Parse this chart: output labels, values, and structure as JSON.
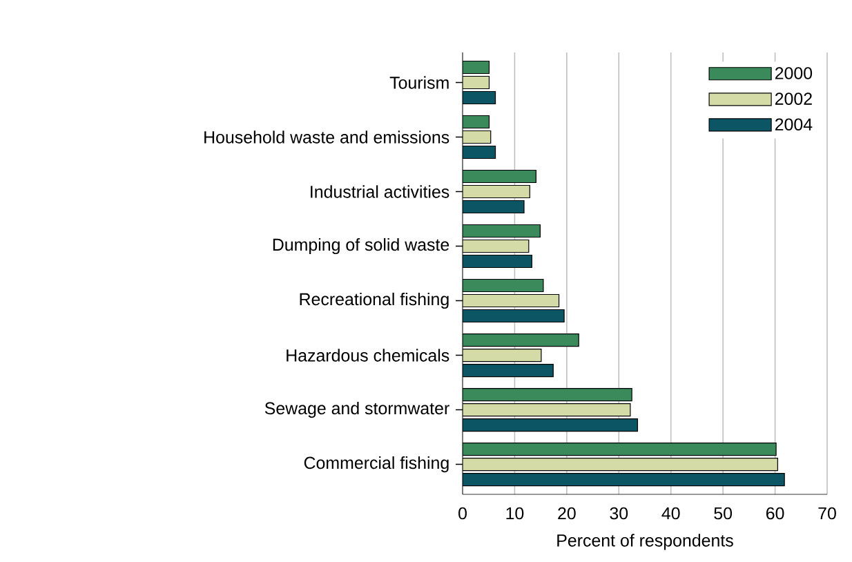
{
  "chart_data": {
    "type": "bar",
    "orientation": "horizontal",
    "xlabel": "Percent of respondents",
    "categories": [
      "Tourism",
      "Household waste and emissions",
      "Industrial activities",
      "Dumping of solid waste",
      "Recreational fishing",
      "Hazardous chemicals",
      "Sewage and stormwater",
      "Commercial fishing"
    ],
    "series": [
      {
        "name": "2000",
        "color": "#3a8a5c",
        "values": [
          5.1,
          5.1,
          14.1,
          14.9,
          15.5,
          22.3,
          32.5,
          60.2
        ]
      },
      {
        "name": "2002",
        "color": "#d5dba6",
        "values": [
          5.1,
          5.4,
          12.9,
          12.7,
          18.5,
          15.1,
          32.2,
          60.5
        ]
      },
      {
        "name": "2004",
        "color": "#0b5565",
        "values": [
          6.3,
          6.3,
          11.8,
          13.3,
          19.5,
          17.4,
          33.6,
          61.8
        ]
      }
    ],
    "xlim": [
      0,
      70
    ],
    "xticks": [
      0,
      10,
      20,
      30,
      40,
      50,
      60,
      70
    ],
    "grid": "x",
    "legend": "top right"
  }
}
